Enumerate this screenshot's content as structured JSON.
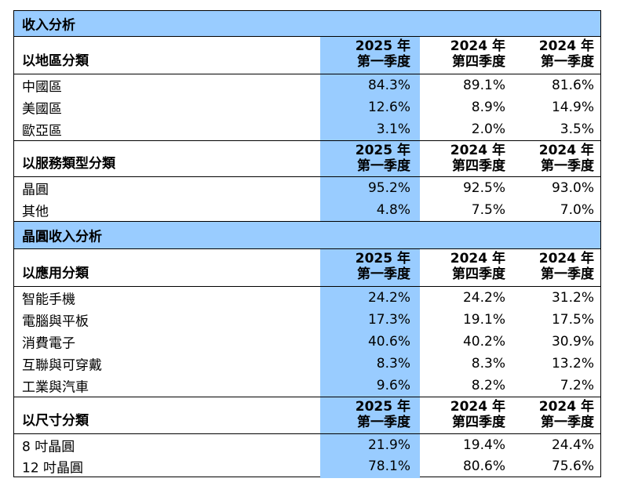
{
  "header_cols": {
    "c1_line1": "2025 年",
    "c1_line2": "第一季度",
    "c2_line1": "2024 年",
    "c2_line2": "第四季度",
    "c3_line1": "2024 年",
    "c3_line2": "第一季度"
  },
  "sections": {
    "revenue_analysis": "收入分析",
    "wafer_revenue_analysis": "晶圓收入分析"
  },
  "by_region": {
    "title": "以地區分類",
    "rows": [
      {
        "label": "中國區",
        "v1": "84.3%",
        "v2": "89.1%",
        "v3": "81.6%"
      },
      {
        "label": "美國區",
        "v1": "12.6%",
        "v2": "8.9%",
        "v3": "14.9%"
      },
      {
        "label": "歐亞區",
        "v1": "3.1%",
        "v2": "2.0%",
        "v3": "3.5%"
      }
    ]
  },
  "by_service": {
    "title": "以服務類型分類",
    "rows": [
      {
        "label": "晶圓",
        "v1": "95.2%",
        "v2": "92.5%",
        "v3": "93.0%"
      },
      {
        "label": "其他",
        "v1": "4.8%",
        "v2": "7.5%",
        "v3": "7.0%"
      }
    ]
  },
  "by_application": {
    "title": "以應用分類",
    "rows": [
      {
        "label": "智能手機",
        "v1": "24.2%",
        "v2": "24.2%",
        "v3": "31.2%"
      },
      {
        "label": "電腦與平板",
        "v1": "17.3%",
        "v2": "19.1%",
        "v3": "17.5%"
      },
      {
        "label": "消費電子",
        "v1": "40.6%",
        "v2": "40.2%",
        "v3": "30.9%"
      },
      {
        "label": "互聯與可穿戴",
        "v1": "8.3%",
        "v2": "8.3%",
        "v3": "13.2%"
      },
      {
        "label": "工業與汽車",
        "v1": "9.6%",
        "v2": "8.2%",
        "v3": "7.2%"
      }
    ]
  },
  "by_size": {
    "title": "以尺寸分類",
    "rows": [
      {
        "label": "8 吋晶圓",
        "v1": "21.9%",
        "v2": "19.4%",
        "v3": "24.4%"
      },
      {
        "label": "12 吋晶圓",
        "v1": "78.1%",
        "v2": "80.6%",
        "v3": "75.6%"
      }
    ]
  },
  "colors": {
    "highlight": "#99ccff",
    "border": "#000000",
    "background": "#ffffff"
  }
}
